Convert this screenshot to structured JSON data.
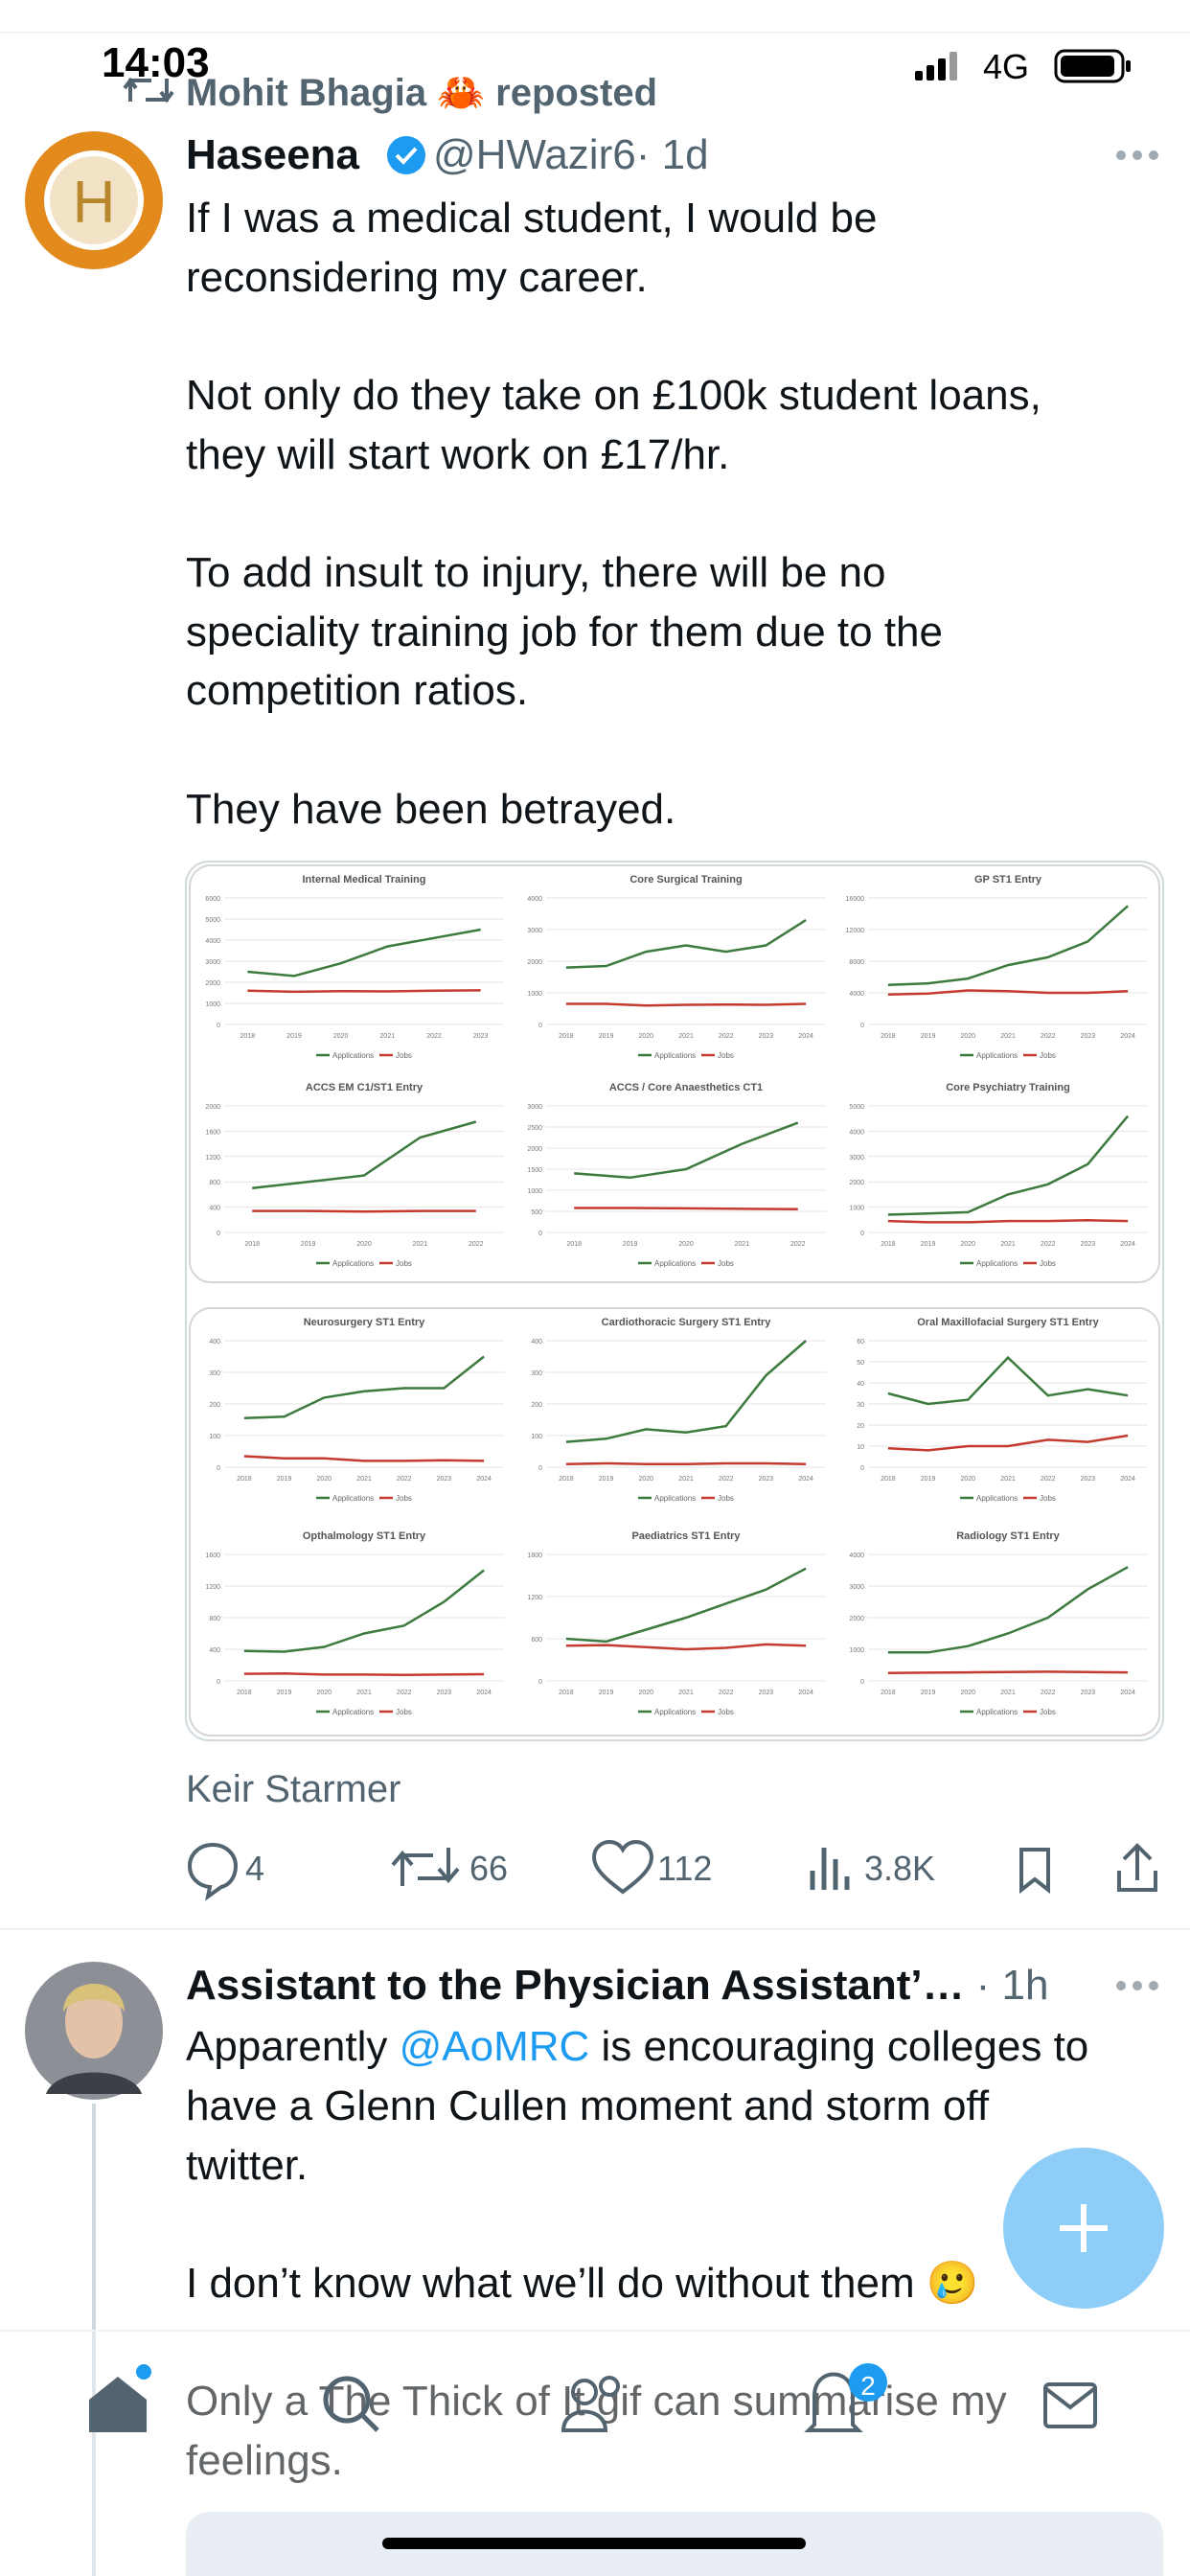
{
  "status_bar": {
    "time": "14:03",
    "network": "4G"
  },
  "tweets": [
    {
      "repost_label": "Mohit Bhagia 🦀 reposted",
      "author": "Haseena",
      "handle": "@HWazir6",
      "time": "· 1d",
      "avatar_letter": "H",
      "text": [
        "If I was a medical student, I would be",
        "reconsidering my career.",
        "Not only do they take on £100k student loans,",
        "they will start work on £17/hr.",
        "To add insult to injury, there will be no",
        "speciality training job for them due to the",
        "competition ratios.",
        "They have been betrayed."
      ],
      "image": {
        "legend": [
          {
            "name": "Applications",
            "color": "#3d7a3d"
          },
          {
            "name": "Jobs",
            "color": "#c43a2f"
          }
        ],
        "charts": [
          {
            "title": "Internal Medical Training",
            "categories": [
              "2018",
              "2019",
              "2020",
              "2021",
              "2022",
              "2023"
            ],
            "applications": [
              2500,
              2300,
              2900,
              3700,
              4100,
              4500
            ],
            "jobs": [
              1600,
              1550,
              1580,
              1570,
              1600,
              1620
            ],
            "ylim": [
              0,
              6000
            ],
            "yticks": [
              0,
              1000,
              2000,
              3000,
              4000,
              5000,
              6000
            ]
          },
          {
            "title": "Core Surgical Training",
            "categories": [
              "2018",
              "2019",
              "2020",
              "2021",
              "2022",
              "2023",
              "2024"
            ],
            "applications": [
              1800,
              1850,
              2300,
              2500,
              2300,
              2500,
              3300
            ],
            "jobs": [
              650,
              650,
              600,
              620,
              630,
              620,
              650
            ],
            "ylim": [
              0,
              4000
            ],
            "yticks": [
              0,
              1000,
              2000,
              3000,
              4000
            ]
          },
          {
            "title": "GP ST1 Entry",
            "categories": [
              "2018",
              "2019",
              "2020",
              "2021",
              "2022",
              "2023",
              "2024"
            ],
            "applications": [
              5000,
              5200,
              5800,
              7500,
              8500,
              10500,
              15000
            ],
            "jobs": [
              3800,
              3900,
              4300,
              4200,
              4000,
              4000,
              4200
            ],
            "ylim": [
              0,
              16000
            ],
            "yticks": [
              0,
              4000,
              8000,
              12000,
              16000
            ]
          },
          {
            "title": "ACCS EM C1/ST1 Entry",
            "categories": [
              "2018",
              "2019",
              "2020",
              "2021",
              "2022"
            ],
            "applications": [
              700,
              800,
              900,
              1500,
              1750
            ],
            "jobs": [
              340,
              340,
              330,
              340,
              340
            ],
            "ylim": [
              0,
              2000
            ],
            "yticks": [
              0,
              400,
              800,
              1200,
              1600,
              2000
            ]
          },
          {
            "title": "ACCS / Core Anaesthetics CT1",
            "categories": [
              "2018",
              "2019",
              "2020",
              "2021",
              "2022"
            ],
            "applications": [
              1400,
              1300,
              1500,
              2100,
              2600
            ],
            "jobs": [
              580,
              580,
              570,
              560,
              550
            ],
            "ylim": [
              0,
              3000
            ],
            "yticks": [
              0,
              500,
              1000,
              1500,
              2000,
              2500,
              3000
            ]
          },
          {
            "title": "Core Psychiatry Training",
            "categories": [
              "2018",
              "2019",
              "2020",
              "2021",
              "2022",
              "2023",
              "2024"
            ],
            "applications": [
              700,
              750,
              800,
              1500,
              1900,
              2700,
              4600
            ],
            "jobs": [
              450,
              400,
              400,
              450,
              450,
              480,
              450
            ],
            "ylim": [
              0,
              5000
            ],
            "yticks": [
              0,
              1000,
              2000,
              3000,
              4000,
              5000
            ]
          },
          {
            "title": "Neurosurgery ST1 Entry",
            "categories": [
              "2018",
              "2019",
              "2020",
              "2021",
              "2022",
              "2023",
              "2024"
            ],
            "applications": [
              155,
              160,
              220,
              240,
              250,
              250,
              350
            ],
            "jobs": [
              35,
              28,
              28,
              20,
              20,
              22,
              20
            ],
            "ylim": [
              0,
              400
            ],
            "yticks": [
              0,
              100,
              200,
              300,
              400
            ]
          },
          {
            "title": "Cardiothoracic Surgery ST1 Entry",
            "categories": [
              "2018",
              "2019",
              "2020",
              "2021",
              "2022",
              "2023",
              "2024"
            ],
            "applications": [
              80,
              90,
              120,
              110,
              130,
              290,
              400
            ],
            "jobs": [
              10,
              12,
              10,
              10,
              12,
              12,
              10
            ],
            "ylim": [
              0,
              400
            ],
            "yticks": [
              0,
              100,
              200,
              300,
              400
            ]
          },
          {
            "title": "Oral Maxillofacial Surgery ST1 Entry",
            "categories": [
              "2018",
              "2019",
              "2020",
              "2021",
              "2022",
              "2023",
              "2024"
            ],
            "applications": [
              35,
              30,
              32,
              52,
              34,
              37,
              34
            ],
            "jobs": [
              9,
              8,
              10,
              10,
              13,
              12,
              15
            ],
            "ylim": [
              0,
              60
            ],
            "yticks": [
              0,
              10,
              20,
              30,
              40,
              50,
              60
            ]
          },
          {
            "title": "Opthalmology ST1 Entry",
            "categories": [
              "2018",
              "2019",
              "2020",
              "2021",
              "2022",
              "2023",
              "2024"
            ],
            "applications": [
              380,
              370,
              430,
              600,
              700,
              1000,
              1400
            ],
            "jobs": [
              90,
              95,
              80,
              80,
              75,
              80,
              85
            ],
            "ylim": [
              0,
              1600
            ],
            "yticks": [
              0,
              400,
              800,
              1200,
              1600
            ]
          },
          {
            "title": "Paediatrics ST1 Entry",
            "categories": [
              "2018",
              "2019",
              "2020",
              "2021",
              "2022",
              "2023",
              "2024"
            ],
            "applications": [
              600,
              560,
              730,
              900,
              1100,
              1300,
              1600
            ],
            "jobs": [
              500,
              510,
              480,
              450,
              470,
              520,
              500
            ],
            "ylim": [
              0,
              1800
            ],
            "yticks": [
              0,
              600,
              1200,
              1800
            ]
          },
          {
            "title": "Radiology ST1 Entry",
            "categories": [
              "2018",
              "2019",
              "2020",
              "2021",
              "2022",
              "2023",
              "2024"
            ],
            "applications": [
              900,
              900,
              1100,
              1500,
              2000,
              2900,
              3600
            ],
            "jobs": [
              250,
              260,
              270,
              280,
              290,
              280,
              270
            ],
            "ylim": [
              0,
              4000
            ],
            "yticks": [
              0,
              1000,
              2000,
              3000,
              4000
            ]
          }
        ]
      },
      "attribution": "Keir Starmer",
      "stats": {
        "replies": "4",
        "reposts": "66",
        "likes": "112",
        "views": "3.8K"
      }
    },
    {
      "author": "Assistant to the Physician Assistant’…",
      "time": "· 1h",
      "text_first": [
        "Apparently ",
        "@AoMRC",
        " is encouraging colleges to"
      ],
      "text": [
        "have a Glenn Cullen moment and storm off",
        "twitter.",
        "I don’t know what we’ll do without them 🥲",
        "Only a The Thick of It gif can summarise my",
        "feelings."
      ]
    }
  ],
  "nav": {
    "notification_badge": "2"
  }
}
